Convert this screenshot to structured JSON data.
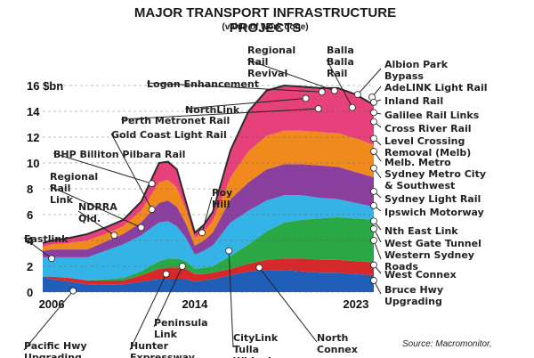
{
  "title": "MAJOR TRANSPORT INFRASTRUCTURE PROJECTS",
  "subtitle": "(value of work done)",
  "source": "Source: Macromonitor,",
  "chart_data": {
    "type": "area",
    "title": "MAJOR TRANSPORT INFRASTRUCTURE PROJECTS",
    "subtitle": "(value of work done)",
    "y_tick_labels": [
      "0",
      "2",
      "4",
      "6",
      "8",
      "10",
      "12",
      "14",
      "16 $bn"
    ],
    "ylim": [
      0,
      16
    ],
    "x_tick_labels": [
      "2006",
      "2014",
      "2023"
    ],
    "xlim": [
      2005.5,
      2024
    ],
    "x": [
      2005.5,
      2006,
      2007,
      2008,
      2009,
      2010,
      2011,
      2012,
      2012.5,
      2013,
      2013.5,
      2014,
      2014.5,
      2015,
      2016,
      2017,
      2018,
      2019,
      2020,
      2021,
      2022,
      2023,
      2024
    ],
    "total": [
      3.8,
      4.0,
      4.2,
      4.5,
      5.0,
      5.6,
      7.0,
      10.0,
      10.1,
      9.5,
      7.0,
      4.6,
      5.2,
      6.2,
      11.0,
      14.0,
      15.6,
      16.0,
      15.9,
      15.8,
      15.8,
      15.3,
      14.5
    ],
    "series": [
      {
        "values": [
          1.2,
          1.0,
          0.8,
          0.6,
          0.6,
          0.6,
          0.8,
          1.0,
          1.0,
          1.0,
          1.0,
          0.8,
          0.9,
          1.0,
          1.3,
          1.6,
          1.7,
          1.7,
          1.6,
          1.5,
          1.5,
          1.4,
          1.3
        ],
        "color": "#1f5fb8"
      },
      {
        "values": [
          0.0,
          0.2,
          0.3,
          0.3,
          0.3,
          0.3,
          0.5,
          0.8,
          0.9,
          0.9,
          0.8,
          0.6,
          0.5,
          0.5,
          0.5,
          0.6,
          0.8,
          0.9,
          1.0,
          1.0,
          1.0,
          1.0,
          1.0
        ],
        "color": "#d8282b"
      },
      {
        "values": [
          0.0,
          0.0,
          0.0,
          0.0,
          0.1,
          0.2,
          0.3,
          0.6,
          0.7,
          0.7,
          0.6,
          0.4,
          0.5,
          0.5,
          1.0,
          1.5,
          2.2,
          2.8,
          3.0,
          3.2,
          3.3,
          3.3,
          3.3
        ],
        "color": "#2aa846"
      },
      {
        "values": [
          1.5,
          1.5,
          1.6,
          1.8,
          2.2,
          2.6,
          2.8,
          3.0,
          2.9,
          2.5,
          1.8,
          1.1,
          1.3,
          1.6,
          2.6,
          2.6,
          2.4,
          2.1,
          1.9,
          1.6,
          1.4,
          1.2,
          1.0
        ],
        "color": "#33b3e6"
      },
      {
        "values": [
          0.5,
          0.6,
          0.6,
          0.6,
          0.7,
          0.8,
          1.0,
          1.5,
          1.6,
          1.5,
          1.1,
          0.7,
          0.8,
          1.0,
          1.8,
          2.2,
          2.4,
          2.4,
          2.4,
          2.5,
          2.5,
          2.4,
          2.3
        ],
        "color": "#8a3f9e"
      },
      {
        "values": [
          0.3,
          0.4,
          0.5,
          0.7,
          0.6,
          0.6,
          0.9,
          1.6,
          1.6,
          1.5,
          1.1,
          0.6,
          0.7,
          0.9,
          1.7,
          2.4,
          2.6,
          2.6,
          2.6,
          2.6,
          2.6,
          2.6,
          2.5
        ],
        "color": "#f08a1c"
      },
      {
        "values": [
          0.3,
          0.3,
          0.4,
          0.5,
          0.5,
          0.5,
          0.7,
          1.5,
          1.4,
          1.4,
          0.6,
          0.4,
          0.5,
          0.7,
          2.1,
          3.1,
          3.5,
          3.5,
          3.4,
          3.4,
          3.5,
          3.4,
          3.1
        ],
        "color": "#e6417a"
      }
    ],
    "annotations": [
      {
        "text": "Eastlink",
        "x": 2006,
        "y": 2.6
      },
      {
        "text": "NDRRA Qld.",
        "x": 2009.5,
        "y": 4.4
      },
      {
        "text": "Regional Rail Link",
        "x": 2011,
        "y": 5.0
      },
      {
        "text": "BHP Billiton Pilbara Rail",
        "x": 2011.6,
        "y": 8.4
      },
      {
        "text": "Gold Coast Light Rail",
        "x": 2011.6,
        "y": 6.4
      },
      {
        "text": "Roy Hill",
        "x": 2014.4,
        "y": 4.6
      },
      {
        "text": "Perth Metronet Rail",
        "x": 2020.9,
        "y": 14.2
      },
      {
        "text": "NorthLink",
        "x": 2020.2,
        "y": 15.0
      },
      {
        "text": "Logan Enhancement",
        "x": 2021.1,
        "y": 15.5
      },
      {
        "text": "Regional Rail Revival",
        "x": 2021.8,
        "y": 15.6
      },
      {
        "text": "Balla Balla Rail",
        "x": 2022.8,
        "y": 14.3
      },
      {
        "text": "Albion Park Bypass",
        "x": 2023.1,
        "y": 15.3
      },
      {
        "text": "AdeLINK Light Rail",
        "x": 2023.9,
        "y": 15.1
      },
      {
        "text": "Inland Rail",
        "x": 2024,
        "y": 14.7
      },
      {
        "text": "Galilee Rail Links",
        "x": 2024,
        "y": 13.9
      },
      {
        "text": "Cross River Rail",
        "x": 2024,
        "y": 13.2
      },
      {
        "text": "Level Crossing Removal (Melb)",
        "x": 2024,
        "y": 11.9
      },
      {
        "text": "Melb. Metro",
        "x": 2024,
        "y": 10.9
      },
      {
        "text": "Sydney Metro City & Southwest",
        "x": 2024,
        "y": 9.6
      },
      {
        "text": "Sydney Light Rail",
        "x": 2024,
        "y": 7.8
      },
      {
        "text": "Ipswich Motorway",
        "x": 2024,
        "y": 6.7
      },
      {
        "text": "Nth East Link",
        "x": 2024,
        "y": 5.5
      },
      {
        "text": "West Gate Tunnel",
        "x": 2024,
        "y": 4.9
      },
      {
        "text": "Western Sydney Roads",
        "x": 2024,
        "y": 4.0
      },
      {
        "text": "West Connex",
        "x": 2024,
        "y": 2.1
      },
      {
        "text": "Bruce Hwy Upgrading",
        "x": 2024,
        "y": 0.9
      },
      {
        "text": "Pacific Hwy Upgrading",
        "x": 2007.2,
        "y": 0.1
      },
      {
        "text": "Hunter Expressway",
        "x": 2012.4,
        "y": 1.4
      },
      {
        "text": "Peninsula Link",
        "x": 2013.3,
        "y": 2.0
      },
      {
        "text": "CityLink Tulla Widening",
        "x": 2015.9,
        "y": 3.2
      },
      {
        "text": "North Connex",
        "x": 2017.6,
        "y": 1.9
      }
    ]
  }
}
